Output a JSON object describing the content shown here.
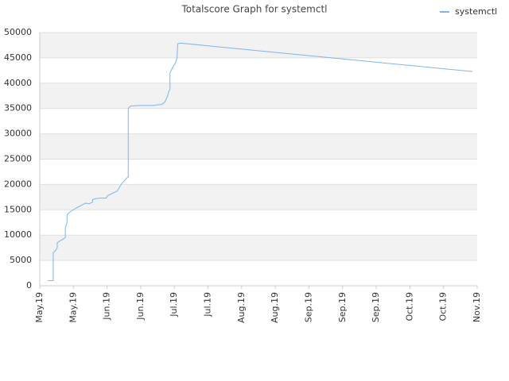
{
  "chart_data": {
    "type": "line",
    "title": "Totalscore Graph for systemctl",
    "xlim": [
      0,
      13
    ],
    "xticks": [
      {
        "value": 0,
        "label": "May.19"
      },
      {
        "value": 1,
        "label": "May.19"
      },
      {
        "value": 2,
        "label": "Jun.19"
      },
      {
        "value": 3,
        "label": "Jun.19"
      },
      {
        "value": 4,
        "label": "Jul.19"
      },
      {
        "value": 5,
        "label": "Jul.19"
      },
      {
        "value": 6,
        "label": "Aug.19"
      },
      {
        "value": 7,
        "label": "Aug.19"
      },
      {
        "value": 8,
        "label": "Sep.19"
      },
      {
        "value": 9,
        "label": "Sep.19"
      },
      {
        "value": 10,
        "label": "Sep.19"
      },
      {
        "value": 11,
        "label": "Oct.19"
      },
      {
        "value": 12,
        "label": "Oct.19"
      },
      {
        "value": 13,
        "label": "Nov.19"
      }
    ],
    "ylim": [
      0,
      50000
    ],
    "yticks": [
      0,
      5000,
      10000,
      15000,
      20000,
      25000,
      30000,
      35000,
      40000,
      45000,
      50000
    ],
    "grid": true,
    "legend": "top-right",
    "series": [
      {
        "name": "systemctl",
        "color": "#7cb5ec",
        "x": [
          0.24,
          0.4,
          0.4,
          0.47,
          0.52,
          0.52,
          0.71,
          0.76,
          0.76,
          0.81,
          0.81,
          0.88,
          1.07,
          1.35,
          1.47,
          1.57,
          1.57,
          1.66,
          1.78,
          1.97,
          2.02,
          2.3,
          2.37,
          2.44,
          2.59,
          2.63,
          2.63,
          2.7,
          2.97,
          3.39,
          3.46,
          3.63,
          3.72,
          3.8,
          3.84,
          3.87,
          3.87,
          3.94,
          4.03,
          4.08,
          4.1,
          4.2,
          12.86
        ],
        "values": [
          1000,
          1000,
          6500,
          7000,
          7500,
          8500,
          9300,
          9500,
          11500,
          12500,
          14000,
          14500,
          15300,
          16300,
          16200,
          16500,
          17000,
          17200,
          17300,
          17300,
          17800,
          18700,
          19500,
          20200,
          21300,
          21500,
          35000,
          35500,
          35600,
          35600,
          35700,
          35800,
          36300,
          37500,
          38500,
          38700,
          42000,
          43000,
          44000,
          45000,
          47800,
          47900,
          42300
        ]
      }
    ]
  }
}
